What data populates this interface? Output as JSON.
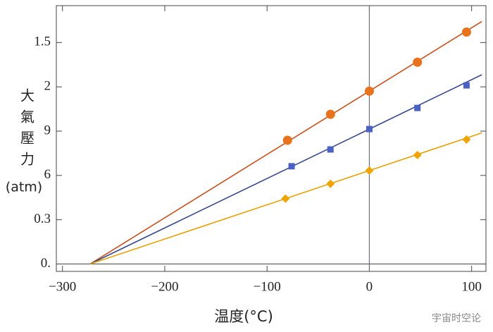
{
  "chart_data": {
    "type": "line",
    "xlabel": "温度(°C)",
    "ylabel": [
      "大氣壓力",
      "(atm)"
    ],
    "watermark": "宇宙时空论",
    "xlim": [
      -306,
      114
    ],
    "ylim": [
      -0.05,
      1.75
    ],
    "xticks": [
      {
        "value": -300,
        "label": "−300"
      },
      {
        "value": -200,
        "label": "−200"
      },
      {
        "value": -100,
        "label": "−100"
      },
      0,
      100
    ],
    "yticks": [
      {
        "value": 0,
        "label": "0."
      },
      0.3,
      {
        "value": 0.6,
        "label": "6"
      },
      {
        "value": 0.9,
        "label": "9"
      },
      {
        "value": 1.2,
        "label": "2"
      },
      1.5
    ],
    "vline": 0,
    "fit_x": [
      -273,
      110
    ],
    "series": [
      {
        "color": "#e8731c",
        "line_color": "#c8501a",
        "marker": "circle",
        "x": [
          -80,
          -38,
          0,
          47,
          95
        ],
        "values": [
          0.838,
          1.014,
          1.171,
          1.367,
          1.571
        ],
        "fit_values": [
          0,
          1.643
        ]
      },
      {
        "color": "#4b62c4",
        "line_color": "#3a4a8e",
        "marker": "square",
        "x": [
          -76,
          -38,
          0,
          47,
          95
        ],
        "values": [
          0.662,
          0.776,
          0.914,
          1.057,
          1.21
        ],
        "fit_values": [
          0,
          1.282
        ]
      },
      {
        "color": "#f0a400",
        "line_color": "#e8a000",
        "marker": "diamond",
        "x": [
          -82,
          -38,
          0,
          47,
          95
        ],
        "values": [
          0.443,
          0.543,
          0.633,
          0.738,
          0.843
        ],
        "fit_values": [
          0,
          0.888
        ]
      }
    ]
  }
}
